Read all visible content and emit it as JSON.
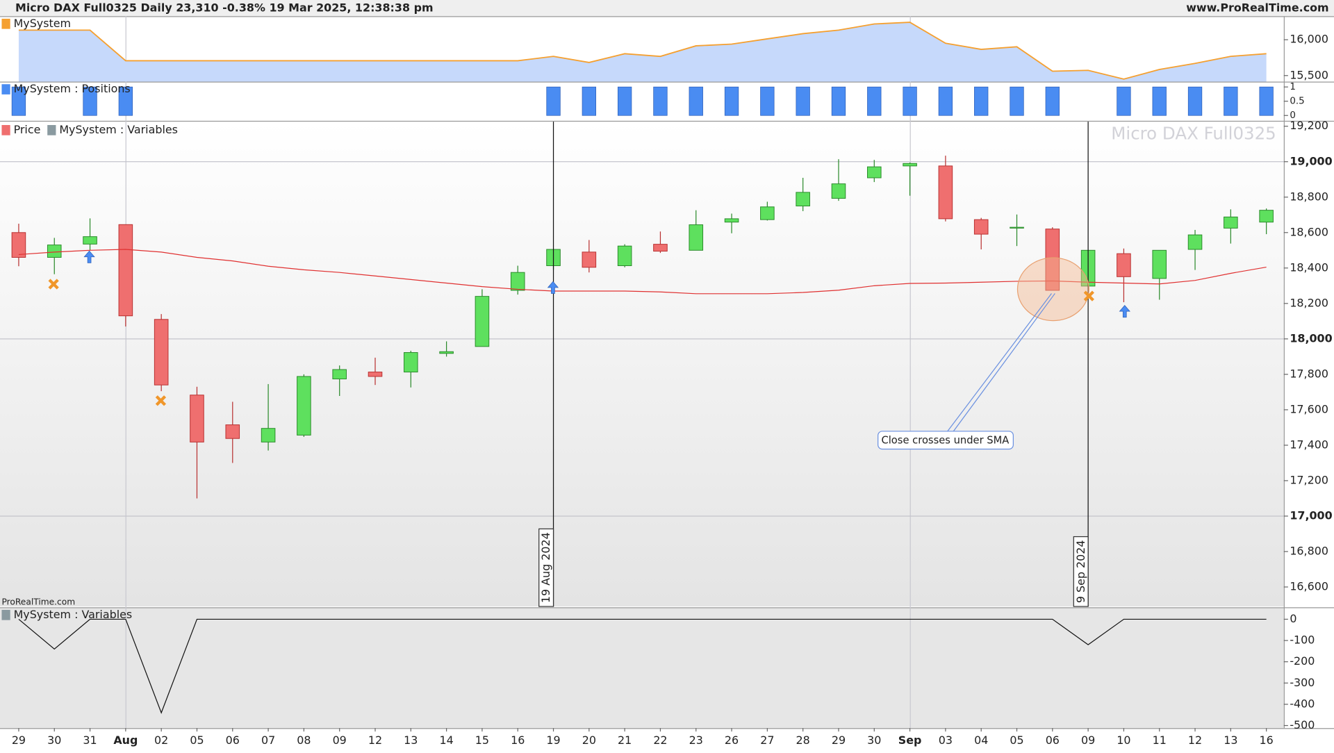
{
  "header": {
    "title": "Micro DAX Full0325 Daily 23,310 -0.38% 19 Mar 2025, 12:38:38 pm",
    "site": "www.ProRealTime.com",
    "credit": "ProRealTime.com"
  },
  "chart_data": [
    {
      "type": "area",
      "title": "MySystem",
      "color": "#f5a030",
      "fill": "#c6d9fb",
      "values": [
        16134,
        16134,
        16134,
        15707,
        15707,
        15707,
        15707,
        15707,
        15707,
        15707,
        15707,
        15707,
        15707,
        15707,
        15707,
        15768,
        15683,
        15805,
        15768,
        15915,
        15939,
        16012,
        16085,
        16134,
        16220,
        16244,
        15951,
        15866,
        15902,
        15561,
        15573,
        15451,
        15585,
        15670,
        15768,
        15805
      ],
      "ylim": [
        15415,
        16329
      ],
      "yticks": [
        {
          "value": 16000,
          "label": "16,000"
        },
        {
          "value": 15500,
          "label": "15,500"
        }
      ]
    },
    {
      "type": "bar",
      "title": "MySystem : Positions",
      "color": "#4a8cf2",
      "values": [
        1,
        0,
        1,
        1,
        0,
        0,
        0,
        0,
        0,
        0,
        0,
        0,
        0,
        0,
        0,
        1,
        1,
        1,
        1,
        1,
        1,
        1,
        1,
        1,
        1,
        1,
        1,
        1,
        1,
        1,
        0,
        1,
        1,
        1,
        1,
        1
      ],
      "ylim": [
        -0.156,
        1.156
      ],
      "yticks": [
        1,
        0.5,
        0
      ]
    },
    {
      "type": "candlestick",
      "watermark": "Micro DAX Full0325",
      "series": [
        {
          "name": "Price",
          "up_color": "#5ee05e",
          "down_color": "#ef6f6f",
          "open": [
            18600,
            18460,
            18535,
            18645,
            18110,
            17683,
            17515,
            17418,
            17457,
            17774,
            17813,
            17813,
            17918,
            17957,
            18274,
            18413,
            18490,
            18413,
            18534,
            18500,
            18659,
            18673,
            18750,
            18793,
            18909,
            18976,
            18976,
            18673,
            18625,
            18620,
            18298,
            18481,
            18341,
            18505,
            18625,
            18659
          ],
          "high": [
            18650,
            18570,
            18680,
            18645,
            18140,
            17730,
            17645,
            17745,
            17800,
            17850,
            17894,
            17933,
            17986,
            18280,
            18413,
            18505,
            18558,
            18534,
            18606,
            18726,
            18707,
            18774,
            18909,
            19014,
            19010,
            18995,
            19034,
            18683,
            18702,
            18630,
            18500,
            18510,
            18500,
            18615,
            18731,
            18736
          ],
          "low": [
            18410,
            18365,
            18500,
            18070,
            17705,
            17100,
            17300,
            17370,
            17447,
            17678,
            17740,
            17726,
            17900,
            17957,
            18250,
            18390,
            18375,
            18404,
            18485,
            18500,
            18596,
            18668,
            18721,
            18779,
            18885,
            18808,
            18663,
            18505,
            18524,
            18274,
            18284,
            18207,
            18221,
            18389,
            18538,
            18591
          ],
          "close": [
            18460,
            18530,
            18577,
            18130,
            17740,
            17418,
            17438,
            17495,
            17788,
            17827,
            17788,
            17923,
            17928,
            18240,
            18375,
            18505,
            18404,
            18524,
            18495,
            18644,
            18678,
            18745,
            18827,
            18875,
            18971,
            18990,
            18678,
            18591,
            18630,
            18274,
            18500,
            18351,
            18500,
            18587,
            18688,
            18726
          ]
        },
        {
          "name": "MySystem : Variables",
          "color": "#e03030",
          "values": [
            18476,
            18490,
            18500,
            18505,
            18490,
            18460,
            18440,
            18410,
            18390,
            18375,
            18355,
            18335,
            18315,
            18295,
            18280,
            18270,
            18270,
            18270,
            18265,
            18255,
            18255,
            18255,
            18262,
            18275,
            18300,
            18313,
            18315,
            18320,
            18325,
            18327,
            18320,
            18315,
            18310,
            18330,
            18370,
            18405
          ]
        }
      ],
      "ylim": [
        16490,
        19226
      ],
      "yticks": [
        {
          "value": 16600,
          "label": "16,600"
        },
        {
          "value": 16800,
          "label": "16,800"
        },
        {
          "value": 17000,
          "label": "17,000"
        },
        {
          "value": 17200,
          "label": "17,200"
        },
        {
          "value": 17400,
          "label": "17,400"
        },
        {
          "value": 17600,
          "label": "17,600"
        },
        {
          "value": 17800,
          "label": "17,800"
        },
        {
          "value": 18000,
          "label": "18,000"
        },
        {
          "value": 18200,
          "label": "18,200"
        },
        {
          "value": 18400,
          "label": "18,400"
        },
        {
          "value": 18600,
          "label": "18,600"
        },
        {
          "value": 18800,
          "label": "18,800"
        },
        {
          "value": 19000,
          "label": "19,000"
        },
        {
          "value": 19200,
          "label": "19,200"
        }
      ],
      "annotations": [
        "19 Aug 2024",
        "9 Sep 2024",
        "Close crosses under SMA"
      ]
    },
    {
      "type": "line",
      "title": "MySystem : Variables",
      "color": "#111",
      "categories": [
        "29",
        "30",
        "31",
        "Aug",
        "02",
        "05",
        "06",
        "07",
        "08",
        "09",
        "12",
        "13",
        "14",
        "15",
        "16",
        "19",
        "20",
        "21",
        "22",
        "23",
        "26",
        "27",
        "28",
        "29",
        "30",
        "Sep",
        "03",
        "04",
        "05",
        "06",
        "09",
        "10",
        "11",
        "12",
        "13",
        "16"
      ],
      "values": [
        0,
        -140,
        0,
        0,
        -440,
        0,
        0,
        0,
        0,
        0,
        0,
        0,
        0,
        0,
        0,
        0,
        0,
        0,
        0,
        0,
        0,
        0,
        0,
        0,
        0,
        0,
        0,
        0,
        0,
        0,
        -120,
        0,
        0,
        0,
        0,
        0
      ],
      "ylim": [
        -512,
        52
      ],
      "yticks": [
        0,
        -100,
        -200,
        -300,
        -400,
        -500
      ]
    }
  ]
}
